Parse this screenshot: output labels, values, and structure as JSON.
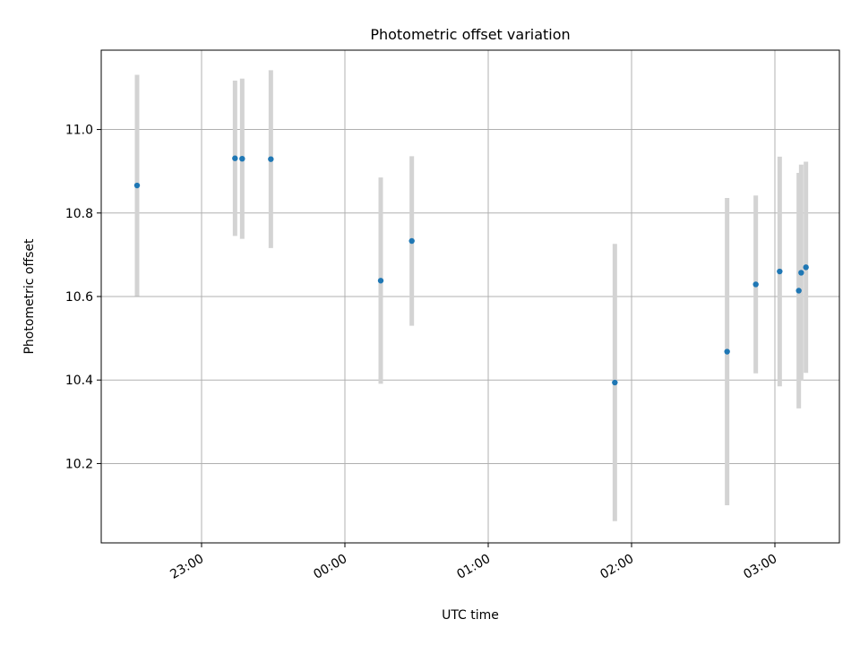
{
  "chart_data": {
    "type": "scatter",
    "title": "Photometric offset variation",
    "xlabel": "UTC time",
    "ylabel": "Photometric offset",
    "x_ticks": [
      "23:00",
      "00:00",
      "01:00",
      "02:00",
      "03:00"
    ],
    "y_ticks": [
      "10.2",
      "10.4",
      "10.6",
      "10.8",
      "11.0"
    ],
    "xlim": [
      "22:18",
      "03:27"
    ],
    "ylim": [
      10.01,
      11.19
    ],
    "grid": true,
    "colors": {
      "point": "#1f77b4",
      "errorbar": "#d3d3d3",
      "grid": "#b0b0b0"
    },
    "series": [
      {
        "points": [
          {
            "x": "22:33",
            "y": 10.866,
            "yerr": 0.265
          },
          {
            "x": "23:14",
            "y": 10.931,
            "yerr": 0.186
          },
          {
            "x": "23:17",
            "y": 10.93,
            "yerr": 0.192
          },
          {
            "x": "23:29",
            "y": 10.929,
            "yerr": 0.213
          },
          {
            "x": "00:15",
            "y": 10.638,
            "yerr": 0.247
          },
          {
            "x": "00:28",
            "y": 10.733,
            "yerr": 0.203
          },
          {
            "x": "01:53",
            "y": 10.394,
            "yerr": 0.332
          },
          {
            "x": "02:40",
            "y": 10.468,
            "yerr": 0.368
          },
          {
            "x": "02:52",
            "y": 10.629,
            "yerr": 0.213
          },
          {
            "x": "03:02",
            "y": 10.66,
            "yerr": 0.275
          },
          {
            "x": "03:10",
            "y": 10.614,
            "yerr": 0.282
          },
          {
            "x": "03:11",
            "y": 10.657,
            "yerr": 0.259
          },
          {
            "x": "03:13",
            "y": 10.67,
            "yerr": 0.253
          }
        ]
      }
    ]
  }
}
